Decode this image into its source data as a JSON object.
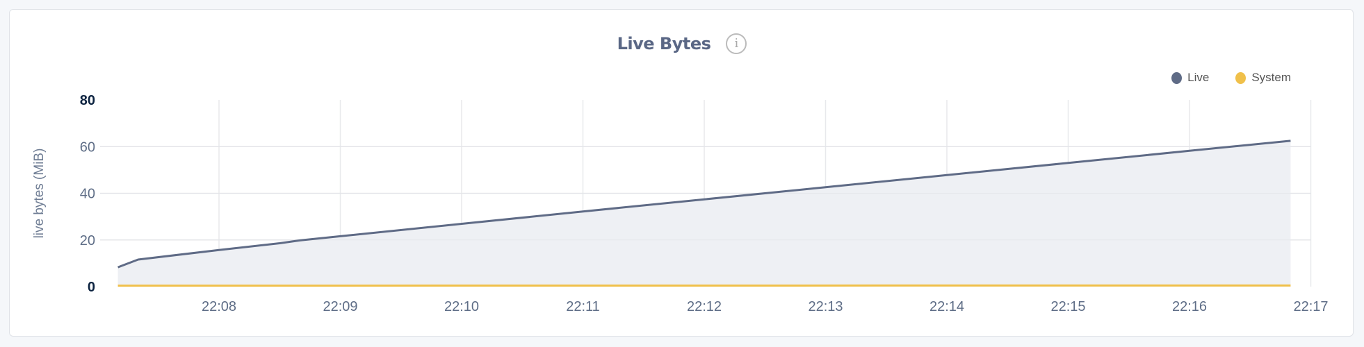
{
  "chart_data": {
    "type": "area",
    "title": "Live Bytes",
    "ylabel": "live bytes (MiB)",
    "xlabel": "",
    "ylim": [
      0,
      80
    ],
    "yticks": [
      "0",
      "20",
      "40",
      "60",
      "80"
    ],
    "xticks": [
      "22:08",
      "22:09",
      "22:10",
      "22:11",
      "22:12",
      "22:13",
      "22:14",
      "22:15",
      "22:16",
      "22:17"
    ],
    "xlim": [
      "22:07:10",
      "22:17:00"
    ],
    "grid": true,
    "legend_position": "top-right",
    "series": [
      {
        "name": "Live",
        "color": "#5f6b86",
        "fill": "#eef0f4",
        "x": [
          "22:07:10",
          "22:07:20",
          "22:08:00",
          "22:08:30",
          "22:08:40",
          "22:09:00",
          "22:10:00",
          "22:11:00",
          "22:12:00",
          "22:13:00",
          "22:14:00",
          "22:15:00",
          "22:16:00",
          "22:16:50"
        ],
        "values": [
          8.3,
          11.6,
          15.7,
          18.6,
          19.8,
          21.6,
          26.9,
          32.2,
          37.4,
          42.6,
          47.8,
          53.0,
          58.2,
          62.5
        ]
      },
      {
        "name": "System",
        "color": "#f0c04a",
        "x": [
          "22:07:10",
          "22:16:50"
        ],
        "values": [
          0.4,
          0.5
        ]
      }
    ]
  },
  "info_icon": "info-circle-icon"
}
